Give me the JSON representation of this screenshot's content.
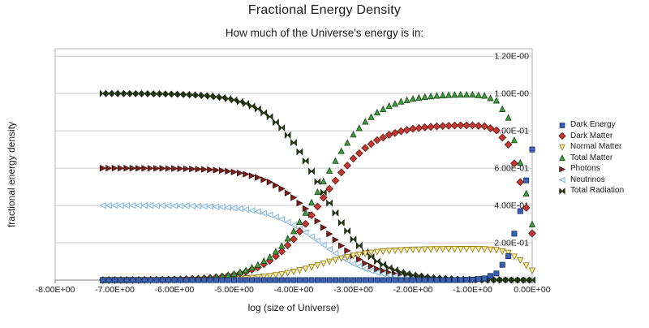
{
  "chart_data": {
    "type": "scatter",
    "title": "Fractional Energy Density",
    "subtitle": "How much of the Universe's energy is in:",
    "xlabel": "log (size of Universe)",
    "ylabel": "fractional energy density",
    "xlim": [
      -8,
      0
    ],
    "ylim": [
      0,
      1.24
    ],
    "grid": true,
    "legend_position": "right",
    "x_tick_labels": [
      "-8.00E+00",
      "-7.00E+00",
      "-6.00E+00",
      "-5.00E+00",
      "-4.00E+00",
      "-3.00E+00",
      "-2.00E+00",
      "-1.00E+00",
      "0.00E+00"
    ],
    "x_tick_values": [
      -8,
      -7,
      -6,
      -5,
      -4,
      -3,
      -2,
      -1,
      0
    ],
    "y_tick_labels": [
      "2.00E-01",
      "4.00E-01",
      "6.00E-01",
      "8.00E-01",
      "1.00E-00",
      "1.20E-00"
    ],
    "y_tick_values": [
      0.2,
      0.4,
      0.6,
      0.8,
      1.0,
      1.2
    ],
    "x": [
      -7.2,
      -7.0,
      -6.8,
      -6.6,
      -6.4,
      -6.2,
      -6.0,
      -5.8,
      -5.6,
      -5.4,
      -5.2,
      -5.0,
      -4.8,
      -4.6,
      -4.4,
      -4.2,
      -4.0,
      -3.8,
      -3.6,
      -3.4,
      -3.2,
      -3.0,
      -2.8,
      -2.6,
      -2.4,
      -2.2,
      -2.0,
      -1.8,
      -1.6,
      -1.4,
      -1.2,
      -1.0,
      -0.8,
      -0.6,
      -0.4,
      -0.2,
      0.0
    ],
    "series": [
      {
        "name": "Dark Energy",
        "marker": "square",
        "fill": "#3A62B4",
        "stroke": "#1C3566",
        "values": [
          0,
          0,
          0,
          0,
          0,
          0,
          0,
          0,
          0,
          0,
          0,
          0,
          0,
          0,
          0,
          0,
          0,
          0,
          0,
          0,
          0,
          0,
          0,
          0,
          0,
          0,
          0,
          0,
          0,
          0.0001,
          0.0006,
          0.0023,
          0.0092,
          0.0356,
          0.1282,
          0.3694,
          0.6999
        ]
      },
      {
        "name": "Dark Matter",
        "marker": "diamond",
        "fill": "#C03A32",
        "stroke": "#6E1A14",
        "values": [
          0.0002,
          0.0003,
          0.0005,
          0.0007,
          0.0012,
          0.0019,
          0.003,
          0.0047,
          0.0074,
          0.0117,
          0.0184,
          0.0287,
          0.0446,
          0.0686,
          0.1037,
          0.1533,
          0.2193,
          0.3012,
          0.3941,
          0.4892,
          0.5772,
          0.651,
          0.7082,
          0.7498,
          0.7786,
          0.7979,
          0.8107,
          0.8188,
          0.8242,
          0.8274,
          0.8292,
          0.8291,
          0.8243,
          0.8027,
          0.7259,
          0.5252,
          0.25
        ]
      },
      {
        "name": "Normal Matter",
        "marker": "triangle-down",
        "fill": "#FFEC9B",
        "stroke": "#95801F",
        "values": [
          0,
          0.0001,
          0.0001,
          0.0002,
          0.0002,
          0.0004,
          0.0006,
          0.0009,
          0.0015,
          0.0023,
          0.0037,
          0.0057,
          0.0089,
          0.0137,
          0.0207,
          0.0306,
          0.0439,
          0.0602,
          0.0788,
          0.0979,
          0.1154,
          0.1302,
          0.1416,
          0.15,
          0.1557,
          0.1596,
          0.1621,
          0.1638,
          0.1648,
          0.1655,
          0.1658,
          0.1658,
          0.1649,
          0.1605,
          0.1452,
          0.105,
          0.05
        ]
      },
      {
        "name": "Total Matter",
        "marker": "triangle-up",
        "fill": "#3F9E3F",
        "stroke": "#1C4F1C",
        "values": [
          0.0002,
          0.0004,
          0.0006,
          0.0009,
          0.0014,
          0.0022,
          0.0036,
          0.0056,
          0.0089,
          0.014,
          0.022,
          0.0345,
          0.0536,
          0.0823,
          0.1245,
          0.1839,
          0.2632,
          0.3615,
          0.4729,
          0.5871,
          0.6926,
          0.7813,
          0.8499,
          0.8997,
          0.9343,
          0.9575,
          0.9728,
          0.9826,
          0.989,
          0.9929,
          0.995,
          0.9949,
          0.9891,
          0.9633,
          0.8711,
          0.6303,
          0.3
        ]
      },
      {
        "name": "Photons",
        "marker": "triangle-right",
        "fill": "#7C1F1A",
        "stroke": "#40100C",
        "values": [
          0.5999,
          0.5998,
          0.5996,
          0.5995,
          0.5992,
          0.5987,
          0.5979,
          0.5966,
          0.5947,
          0.5916,
          0.5868,
          0.5793,
          0.5678,
          0.5506,
          0.5253,
          0.4897,
          0.4421,
          0.3831,
          0.3163,
          0.2477,
          0.1844,
          0.1313,
          0.0901,
          0.0602,
          0.0394,
          0.0255,
          0.0163,
          0.0104,
          0.0066,
          0.0042,
          0.0026,
          0.0017,
          0.001,
          0.0006,
          0.0004,
          0.0002,
          0.0001
        ]
      },
      {
        "name": "Neutrinos",
        "marker": "triangle-left",
        "fill": "#E9F3FA",
        "stroke": "#7FB3D9",
        "values": [
          0.3999,
          0.3999,
          0.3998,
          0.3996,
          0.3994,
          0.3991,
          0.3986,
          0.3978,
          0.3964,
          0.3944,
          0.3912,
          0.3862,
          0.3786,
          0.3671,
          0.3502,
          0.3264,
          0.2947,
          0.2554,
          0.2108,
          0.1652,
          0.1229,
          0.0875,
          0.06,
          0.0401,
          0.0263,
          0.017,
          0.0109,
          0.007,
          0.0044,
          0.0028,
          0.0018,
          0.0011,
          0.0007,
          0.0004,
          0.0002,
          0.0001,
          0
        ]
      },
      {
        "name": "Total Radiation",
        "marker": "bowtie",
        "fill": "#2E4413",
        "stroke": "#16230A",
        "values": [
          0.9998,
          0.9996,
          0.9994,
          0.9991,
          0.9986,
          0.9978,
          0.9964,
          0.9944,
          0.9911,
          0.986,
          0.978,
          0.9655,
          0.9464,
          0.9177,
          0.8755,
          0.8161,
          0.7368,
          0.6385,
          0.5271,
          0.4129,
          0.3073,
          0.2188,
          0.1501,
          0.1003,
          0.0657,
          0.0425,
          0.0272,
          0.0174,
          0.011,
          0.007,
          0.0044,
          0.0028,
          0.0017,
          0.0011,
          0.0006,
          0.0003,
          0.0001
        ]
      }
    ]
  }
}
